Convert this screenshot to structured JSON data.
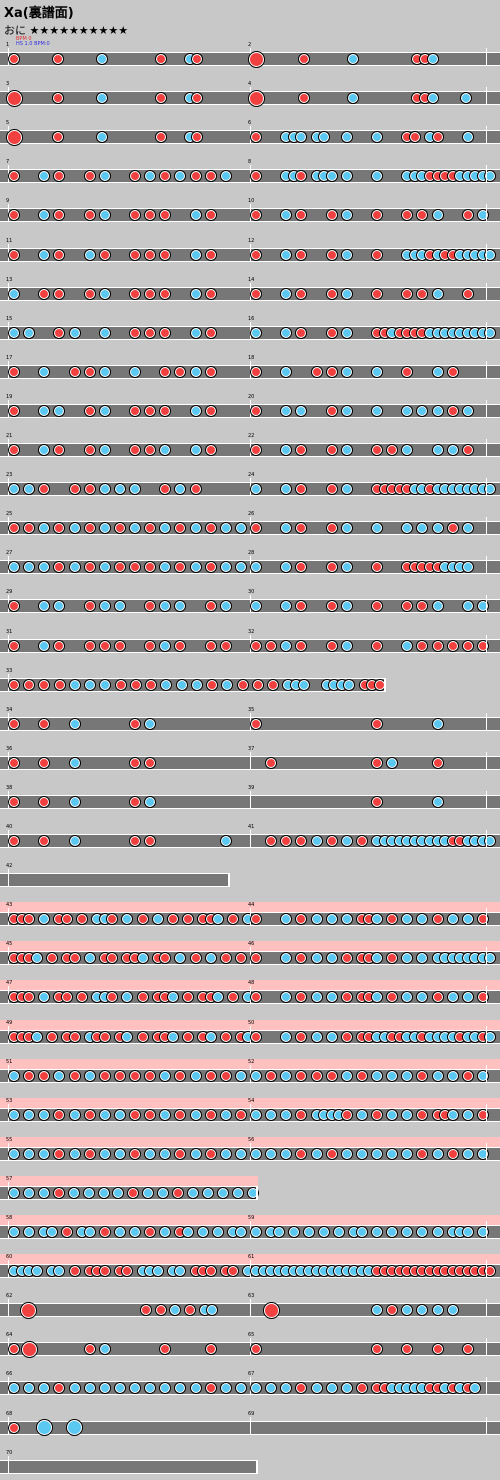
{
  "song": {
    "title": "Xa(裏譜面)",
    "course_label": "おに",
    "stars": "★★★★★★★★★★",
    "bpm_line1": "BPM 0",
    "bpm_line2": "HS 1.0 BPM:0"
  },
  "colors": {
    "don": "#f04040",
    "ka": "#5ac8f0",
    "lane": "#777777",
    "gogo": "#ffc0c0",
    "background": "#c8c8c8"
  },
  "rows": [
    {
      "left": {
        "num": "1",
        "notes": "d.....r.....b.......r...br.......",
        "big": [
          0
        ]
      },
      "right": {
        "num": "2",
        "notes": "D.....r.....b.......rrb.......",
        "big": [
          0
        ]
      }
    },
    {
      "left": {
        "num": "3",
        "notes": "D.....r.....b.......r...br.......",
        "big": [
          0
        ]
      },
      "right": {
        "num": "4",
        "notes": "D.....r.....b.......rrb...b...",
        "big": [
          0
        ]
      }
    },
    {
      "left": {
        "num": "5",
        "notes": "D.....r.....b.......r...br.......",
        "big": [
          0
        ]
      },
      "right": {
        "num": "6",
        "notes": "r...bbb.bb..b...b...rr.br...b...",
        "big": [
          0
        ]
      }
    },
    {
      "left": {
        "num": "7",
        "notes": "r...b.r...r.b...r.b.r.b.r.r.b...",
        "big": []
      },
      "right": {
        "num": "8",
        "notes": "r...bbr.bbb.b...b...bbbrrrrbbbbb",
        "big": []
      }
    },
    {
      "left": {
        "num": "9",
        "notes": "r...b.r...r.b...r.r.r...b.r.....",
        "big": []
      },
      "right": {
        "num": "10",
        "notes": "r...b.r...r.b...r...r.r.b...r.b.",
        "big": []
      }
    },
    {
      "left": {
        "num": "11",
        "notes": "r...b.r...b.r...r.r.r...b.r.....",
        "big": []
      },
      "right": {
        "num": "12",
        "notes": "r...b.r...r.b...r...bbbrbrrbbbbb",
        "big": []
      }
    },
    {
      "left": {
        "num": "13",
        "notes": "b...r.r...r.b...r.r.r...b.r.....",
        "big": []
      },
      "right": {
        "num": "14",
        "notes": "r...b.r...r.b...r...r.r.b...r...",
        "big": []
      }
    },
    {
      "left": {
        "num": "15",
        "notes": "b.b...r.b...b...r.r.r...b.r.....",
        "big": []
      },
      "right": {
        "num": "16",
        "notes": "b...b.r...r.b...rrbrrrrbbbbbbbbb",
        "big": []
      }
    },
    {
      "left": {
        "num": "17",
        "notes": "r...b...r.r.b...b...r.r.b.r.....",
        "big": []
      },
      "right": {
        "num": "18",
        "notes": "r...b...r.r.b...b...r...b.r.....",
        "big": []
      }
    },
    {
      "left": {
        "num": "19",
        "notes": "r...b.b...r.b...r.r.r...b.r.....",
        "big": []
      },
      "right": {
        "num": "20",
        "notes": "r...b.b...r.b...b...b.b.b.r.b...",
        "big": []
      }
    },
    {
      "left": {
        "num": "21",
        "notes": "r...b.r...r.b...r.r.b...b.r.....",
        "big": []
      },
      "right": {
        "num": "22",
        "notes": "r...b.r...r.b...r.r.b...b.b.r...",
        "big": []
      }
    },
    {
      "left": {
        "num": "23",
        "notes": "b.b.r...r.r.b.b.b...r.b.r.......",
        "big": []
      },
      "right": {
        "num": "24",
        "notes": "b...b.r...r.b...rrrrrbbrbbbbbbbb",
        "big": []
      }
    },
    {
      "left": {
        "num": "25",
        "notes": "r.r.b.r.b.r.b.r.b.r.b.r.b.r.b.b.",
        "big": []
      },
      "right": {
        "num": "26",
        "notes": "r...b.r...r.b...b...b.b.b.r.b...",
        "big": []
      }
    },
    {
      "left": {
        "num": "27",
        "notes": "b.b.b.r.b.r.b.r.r.r.b.r.b.r.b.b.",
        "big": []
      },
      "right": {
        "num": "28",
        "notes": "b...b.r...r.b...r...rrrrrbbbb...",
        "big": []
      }
    },
    {
      "left": {
        "num": "29",
        "notes": "r...b.b...r.b.b...r.b.b...r.b...",
        "big": []
      },
      "right": {
        "num": "30",
        "notes": "b...b.r...r.b...r...r.r.b...b.b.",
        "big": []
      }
    },
    {
      "left": {
        "num": "31",
        "notes": "r...b.r...r.r.r...r.b.r...r.r...",
        "big": []
      },
      "right": {
        "num": "32",
        "notes": "r.r.b.r...r.b...r...b.r.r.r.r.r.",
        "big": []
      }
    },
    {
      "left": {
        "num": "33",
        "notes": "r.r.r.r.b.b.b.r.r.r.b.b.b.r.b.r.r.r.bbb..bbbb.rrr",
        "big": [],
        "span": 1.6
      }
    },
    {
      "left": {
        "num": "34",
        "notes": "r...r...b.......r.b.............",
        "big": []
      },
      "right": {
        "num": "35",
        "notes": "r...............r.......b.......",
        "big": []
      }
    },
    {
      "left": {
        "num": "36",
        "notes": "r...r...b.......r.r.............",
        "big": []
      },
      "right": {
        "num": "37",
        "notes": "..r.............r.b.....r.......",
        "big": []
      }
    },
    {
      "left": {
        "num": "38",
        "notes": "r...r...b.......r.b.............",
        "big": []
      },
      "right": {
        "num": "39",
        "notes": "................r.......b.......",
        "big": []
      }
    },
    {
      "left": {
        "num": "40",
        "notes": "r...r...b.......r.r.........b...",
        "big": []
      },
      "right": {
        "num": "41",
        "notes": "..r.r.r.b.r.b.r.bbbbbbbbbbrrbbbb",
        "big": []
      }
    },
    {
      "left": {
        "num": "42",
        "notes": "",
        "big": [],
        "span": 0.94
      }
    },
    {
      "left": {
        "num": "43",
        "notes": "rrr.b.rr.r.bbr.b.r.b.r.r.rrb.r.b",
        "big": [],
        "gogo": true
      },
      "right": {
        "num": "44",
        "notes": "r...b.r.b.b.b.rrb.r.b.b.r.b.b.r.",
        "big": [],
        "gogo": true
      }
    },
    {
      "left": {
        "num": "45",
        "notes": "rrrb.r.rr.b.rr.rrb.rr.b.r.b.r.r.",
        "big": [],
        "gogo": true
      },
      "right": {
        "num": "46",
        "notes": "r...b.r.b.b.r.rrb.r.b.b.bbbbbbbb",
        "big": [],
        "gogo": true
      }
    },
    {
      "left": {
        "num": "47",
        "notes": "rrr.b.rr.r.bbr.b.r.rrb.r.rrb.r.b",
        "big": [],
        "gogo": true
      },
      "right": {
        "num": "48",
        "notes": "r...b.r.b.b.r.rrb.r.b.b.r.b.b.r.",
        "big": [],
        "gogo": true
      }
    },
    {
      "left": {
        "num": "49",
        "notes": "rrrb.r.rr.brr.rb.r.rrb.r.rb.r.rb",
        "big": [],
        "gogo": true
      },
      "right": {
        "num": "50",
        "notes": "r...b.r.b.b.r.rrbbrrbbrbbbbrbbrb",
        "big": [],
        "gogo": true
      }
    },
    {
      "left": {
        "num": "51",
        "notes": "b.r.r.b.r.b.r.r.r.r.b.r.b.r.r.b.",
        "big": [],
        "gogo": true
      },
      "right": {
        "num": "52",
        "notes": "b.r.b.r.r.r.b.r.b.b.b.r.b.b.r.b.",
        "big": [],
        "gogo": true
      }
    },
    {
      "left": {
        "num": "53",
        "notes": "b.b.b.r.b.r.b.b.r.r.b.r.b.r.b.r.",
        "big": [],
        "gogo": true
      },
      "right": {
        "num": "54",
        "notes": "b.b.b.r.bbbbr.b.r.b.b.r.rrb.b.r.",
        "big": [],
        "gogo": true
      }
    },
    {
      "left": {
        "num": "55",
        "notes": "b.b.b.r.b.r.b.b.r.b.b.r.b.r.b.b.",
        "big": [],
        "gogo": true
      },
      "right": {
        "num": "56",
        "notes": "b.b.b.r.b.r.b.b.b.b.b.r.b.r.b.b.",
        "big": [],
        "gogo": true
      }
    },
    {
      "left": {
        "num": "57",
        "notes": "b.b.b.r.b.b.b.b.r.b.b.r.b.b.b.b.b",
        "big": [],
        "span": 1.06,
        "gogo": true
      }
    },
    {
      "left": {
        "num": "58",
        "notes": "b.b.bb.r.bb.r.b.b.r.b.rb.b.b.bb.",
        "big": [],
        "gogo": true
      },
      "right": {
        "num": "59",
        "notes": "b.bb.b.b.b.b.bb.b.b.b.b.b.bbb.b.",
        "big": [],
        "gogo": true
      }
    },
    {
      "left": {
        "num": "60",
        "notes": "bbbb.bb.r.rrr.rr.bbb.bb.rrr.rr.b",
        "big": [],
        "gogo": true
      },
      "right": {
        "num": "61",
        "notes": "bbbbbbbbbbbbbbbbrrrrrrrrrrrrrrrr",
        "big": [],
        "gogo": true
      }
    },
    {
      "left": {
        "num": "62",
        "notes": "..D...............r.r.b.r.bb.....",
        "big": [
          2
        ]
      },
      "right": {
        "num": "63",
        "notes": "..D.............b.r.b.b.b.b.....",
        "big": [
          2
        ]
      }
    },
    {
      "left": {
        "num": "64",
        "notes": "r.D.......r.b.......r.....r.....",
        "big": [
          2
        ]
      },
      "right": {
        "num": "65",
        "notes": "r...............r...r...r...r...",
        "big": []
      }
    },
    {
      "left": {
        "num": "66",
        "notes": "b.b.b.r.b.b.b.b.b.b.b.b.b.r.b.b.",
        "big": []
      },
      "right": {
        "num": "67",
        "notes": "b.b.b.r.b.b.b.r.rrbbbbbrrbrbrb..",
        "big": []
      }
    },
    {
      "left": {
        "num": "68",
        "notes": "r...B...B.......................",
        "big": [
          2,
          4
        ]
      },
      "right": {
        "num": "69",
        "notes": "",
        "big": []
      }
    },
    {
      "left": {
        "num": "70",
        "notes": "",
        "big": [],
        "span": 1.06
      }
    }
  ]
}
